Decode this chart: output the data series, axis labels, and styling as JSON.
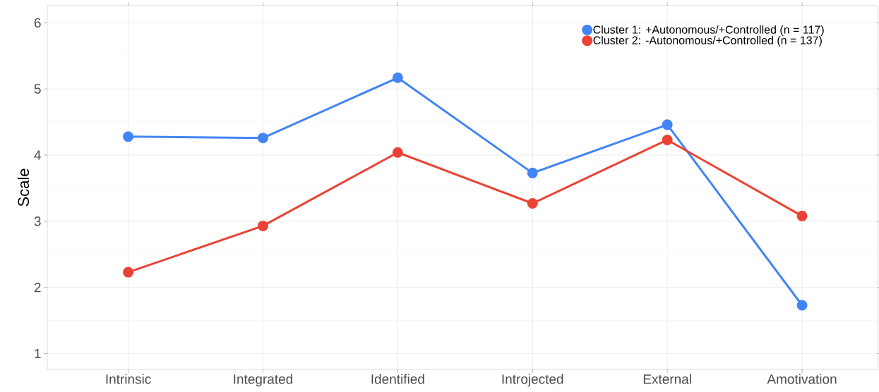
{
  "chart_data": {
    "type": "line",
    "ylabel": "Scale",
    "categories": [
      "Intrinsic",
      "Integrated",
      "Identified",
      "Introjected",
      "External",
      "Amotivation"
    ],
    "series": [
      {
        "name": "Cluster 1: +Autonomous/+Controlled (n = 117)",
        "color": "#4285f4",
        "values": [
          4.28,
          4.26,
          5.17,
          3.73,
          4.46,
          1.73
        ]
      },
      {
        "name": "Cluster 2: -Autonomous/+Controlled (n = 137)",
        "color": "#ea4335",
        "values": [
          2.23,
          2.93,
          4.04,
          3.27,
          4.23,
          3.08
        ]
      }
    ],
    "ylim": [
      0.76,
      6.26
    ],
    "yticks": [
      1,
      2,
      3,
      4,
      5,
      6
    ],
    "grid": true,
    "legend": "top right",
    "marker": "circle",
    "line_style": "solid"
  }
}
